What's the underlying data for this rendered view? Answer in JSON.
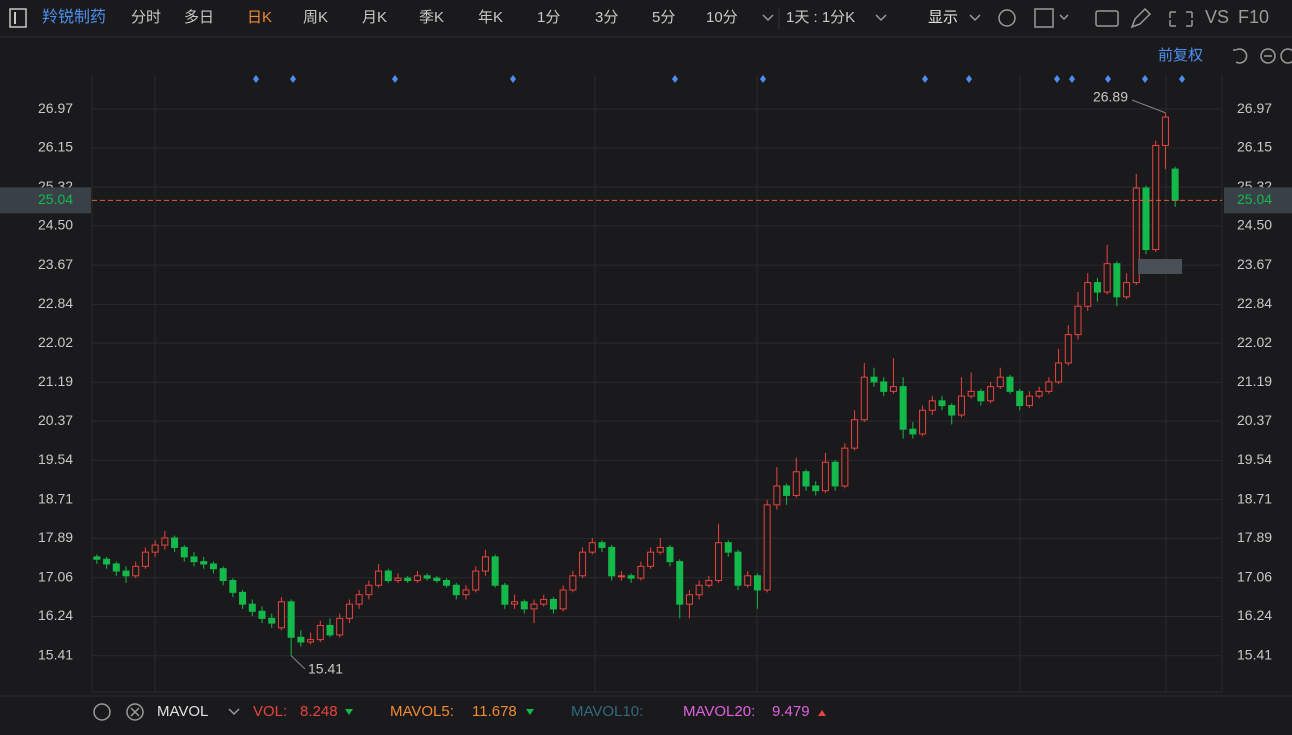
{
  "toolbar": {
    "stock": "羚锐制药",
    "periods": [
      "分时",
      "多日",
      "日K",
      "周K",
      "月K",
      "季K",
      "年K",
      "1分",
      "3分",
      "5分",
      "10分"
    ],
    "active_period": 2,
    "period_selector": "1天 : 1分K",
    "display": "显示",
    "vs": "VS",
    "f10": "F10"
  },
  "chart_data": {
    "type": "candlestick",
    "adjust_label": "前复权",
    "ohlc": [
      [
        17.5,
        17.55,
        17.35,
        17.45
      ],
      [
        17.45,
        17.5,
        17.25,
        17.35
      ],
      [
        17.35,
        17.4,
        17.1,
        17.2
      ],
      [
        17.2,
        17.3,
        16.95,
        17.1
      ],
      [
        17.1,
        17.4,
        17.05,
        17.3
      ],
      [
        17.3,
        17.7,
        17.25,
        17.6
      ],
      [
        17.6,
        17.85,
        17.5,
        17.75
      ],
      [
        17.75,
        18.05,
        17.65,
        17.9
      ],
      [
        17.9,
        17.95,
        17.6,
        17.7
      ],
      [
        17.7,
        17.75,
        17.4,
        17.5
      ],
      [
        17.5,
        17.6,
        17.3,
        17.4
      ],
      [
        17.4,
        17.5,
        17.25,
        17.35
      ],
      [
        17.35,
        17.4,
        17.15,
        17.25
      ],
      [
        17.25,
        17.3,
        16.9,
        17.0
      ],
      [
        17.0,
        17.05,
        16.65,
        16.75
      ],
      [
        16.75,
        16.8,
        16.4,
        16.5
      ],
      [
        16.5,
        16.6,
        16.25,
        16.35
      ],
      [
        16.35,
        16.45,
        16.1,
        16.2
      ],
      [
        16.2,
        16.3,
        16.0,
        16.1
      ],
      [
        16.0,
        16.65,
        15.95,
        16.55
      ],
      [
        16.55,
        16.6,
        15.41,
        15.8
      ],
      [
        15.8,
        15.95,
        15.6,
        15.7
      ],
      [
        15.7,
        15.9,
        15.65,
        15.75
      ],
      [
        15.75,
        16.15,
        15.7,
        16.05
      ],
      [
        16.05,
        16.2,
        15.8,
        15.85
      ],
      [
        15.85,
        16.3,
        15.8,
        16.2
      ],
      [
        16.2,
        16.6,
        16.1,
        16.5
      ],
      [
        16.5,
        16.8,
        16.4,
        16.7
      ],
      [
        16.7,
        17.0,
        16.6,
        16.9
      ],
      [
        16.9,
        17.35,
        16.85,
        17.2
      ],
      [
        17.2,
        17.25,
        16.95,
        17.0
      ],
      [
        17.0,
        17.15,
        16.95,
        17.05
      ],
      [
        17.05,
        17.1,
        16.95,
        17.0
      ],
      [
        17.0,
        17.2,
        16.95,
        17.1
      ],
      [
        17.1,
        17.15,
        17.0,
        17.05
      ],
      [
        17.05,
        17.1,
        16.95,
        17.0
      ],
      [
        17.0,
        17.05,
        16.85,
        16.9
      ],
      [
        16.9,
        16.95,
        16.6,
        16.7
      ],
      [
        16.7,
        16.9,
        16.6,
        16.8
      ],
      [
        16.8,
        17.3,
        16.75,
        17.2
      ],
      [
        17.2,
        17.65,
        17.1,
        17.5
      ],
      [
        17.5,
        17.55,
        16.85,
        16.9
      ],
      [
        16.9,
        16.95,
        16.4,
        16.5
      ],
      [
        16.5,
        16.7,
        16.4,
        16.55
      ],
      [
        16.55,
        16.6,
        16.3,
        16.4
      ],
      [
        16.4,
        16.6,
        16.1,
        16.5
      ],
      [
        16.5,
        16.7,
        16.45,
        16.6
      ],
      [
        16.6,
        16.65,
        16.3,
        16.4
      ],
      [
        16.4,
        16.9,
        16.35,
        16.8
      ],
      [
        16.8,
        17.2,
        16.75,
        17.1
      ],
      [
        17.1,
        17.7,
        17.05,
        17.6
      ],
      [
        17.6,
        17.9,
        17.55,
        17.8
      ],
      [
        17.8,
        17.85,
        17.6,
        17.7
      ],
      [
        17.7,
        17.75,
        17.0,
        17.1
      ],
      [
        17.1,
        17.2,
        17.0,
        17.1
      ],
      [
        17.1,
        17.15,
        16.95,
        17.05
      ],
      [
        17.05,
        17.4,
        17.0,
        17.3
      ],
      [
        17.3,
        17.7,
        17.25,
        17.6
      ],
      [
        17.6,
        17.9,
        17.55,
        17.7
      ],
      [
        17.7,
        17.75,
        17.3,
        17.4
      ],
      [
        17.4,
        17.45,
        16.2,
        16.5
      ],
      [
        16.5,
        16.8,
        16.2,
        16.7
      ],
      [
        16.7,
        17.0,
        16.6,
        16.9
      ],
      [
        16.9,
        17.1,
        16.85,
        17.0
      ],
      [
        17.0,
        18.2,
        16.95,
        17.8
      ],
      [
        17.8,
        17.85,
        17.5,
        17.6
      ],
      [
        17.6,
        17.65,
        16.8,
        16.9
      ],
      [
        16.9,
        17.2,
        16.85,
        17.1
      ],
      [
        17.1,
        17.15,
        16.4,
        16.8
      ],
      [
        16.8,
        18.7,
        16.75,
        18.6
      ],
      [
        18.6,
        19.4,
        18.5,
        19.0
      ],
      [
        19.0,
        19.05,
        18.6,
        18.8
      ],
      [
        18.8,
        19.6,
        18.75,
        19.3
      ],
      [
        19.3,
        19.35,
        18.9,
        19.0
      ],
      [
        19.0,
        19.1,
        18.8,
        18.9
      ],
      [
        18.9,
        19.7,
        18.85,
        19.5
      ],
      [
        19.5,
        19.55,
        18.9,
        19.0
      ],
      [
        19.0,
        19.9,
        18.95,
        19.8
      ],
      [
        19.8,
        20.6,
        19.75,
        20.4
      ],
      [
        20.4,
        21.6,
        20.35,
        21.3
      ],
      [
        21.3,
        21.5,
        21.1,
        21.2
      ],
      [
        21.2,
        21.3,
        20.9,
        21.0
      ],
      [
        21.0,
        21.7,
        20.95,
        21.1
      ],
      [
        21.1,
        21.3,
        20.0,
        20.2
      ],
      [
        20.2,
        20.35,
        20.0,
        20.1
      ],
      [
        20.1,
        20.7,
        20.05,
        20.6
      ],
      [
        20.6,
        20.9,
        20.5,
        20.8
      ],
      [
        20.8,
        20.9,
        20.6,
        20.7
      ],
      [
        20.7,
        20.75,
        20.3,
        20.5
      ],
      [
        20.5,
        21.3,
        20.45,
        20.9
      ],
      [
        20.9,
        21.4,
        20.85,
        21.0
      ],
      [
        21.0,
        21.05,
        20.7,
        20.8
      ],
      [
        20.8,
        21.2,
        20.75,
        21.1
      ],
      [
        21.1,
        21.5,
        21.05,
        21.3
      ],
      [
        21.3,
        21.35,
        20.95,
        21.0
      ],
      [
        21.0,
        21.05,
        20.6,
        20.7
      ],
      [
        20.7,
        21.0,
        20.65,
        20.9
      ],
      [
        20.9,
        21.1,
        20.85,
        21.0
      ],
      [
        21.0,
        21.3,
        20.95,
        21.2
      ],
      [
        21.2,
        21.9,
        21.15,
        21.6
      ],
      [
        21.6,
        22.4,
        21.55,
        22.2
      ],
      [
        22.2,
        23.1,
        22.1,
        22.8
      ],
      [
        22.8,
        23.5,
        22.7,
        23.3
      ],
      [
        23.3,
        23.4,
        22.9,
        23.1
      ],
      [
        23.1,
        24.1,
        23.05,
        23.7
      ],
      [
        23.7,
        23.75,
        22.8,
        23.0
      ],
      [
        23.0,
        23.5,
        22.95,
        23.3
      ],
      [
        23.3,
        25.6,
        23.25,
        25.3
      ],
      [
        25.3,
        25.35,
        23.9,
        24.0
      ],
      [
        24.0,
        26.3,
        23.95,
        26.2
      ],
      [
        26.2,
        26.89,
        25.7,
        26.8
      ],
      [
        25.7,
        25.75,
        24.9,
        25.04
      ]
    ],
    "up_color": "#e8433e",
    "down_color": "#13b94a",
    "ylim": [
      14.63,
      27.69
    ],
    "yticks": [
      15.41,
      16.24,
      17.06,
      17.89,
      18.71,
      19.54,
      20.37,
      21.19,
      22.02,
      22.84,
      23.67,
      {
        "value": 24.5,
        "label": "24.50"
      },
      25.32,
      26.15,
      26.97
    ],
    "current_price": 25.04,
    "high_label": "26.89",
    "low_label": "15.41"
  },
  "indicator": {
    "name": "MAVOL",
    "vol_label": "VOL:",
    "vol": "8.248",
    "mavol5_label": "MAVOL5:",
    "mavol5": "11.678",
    "mavol10_label": "MAVOL10:",
    "mavol20_label": "MAVOL20:",
    "mavol20": "9.479"
  }
}
